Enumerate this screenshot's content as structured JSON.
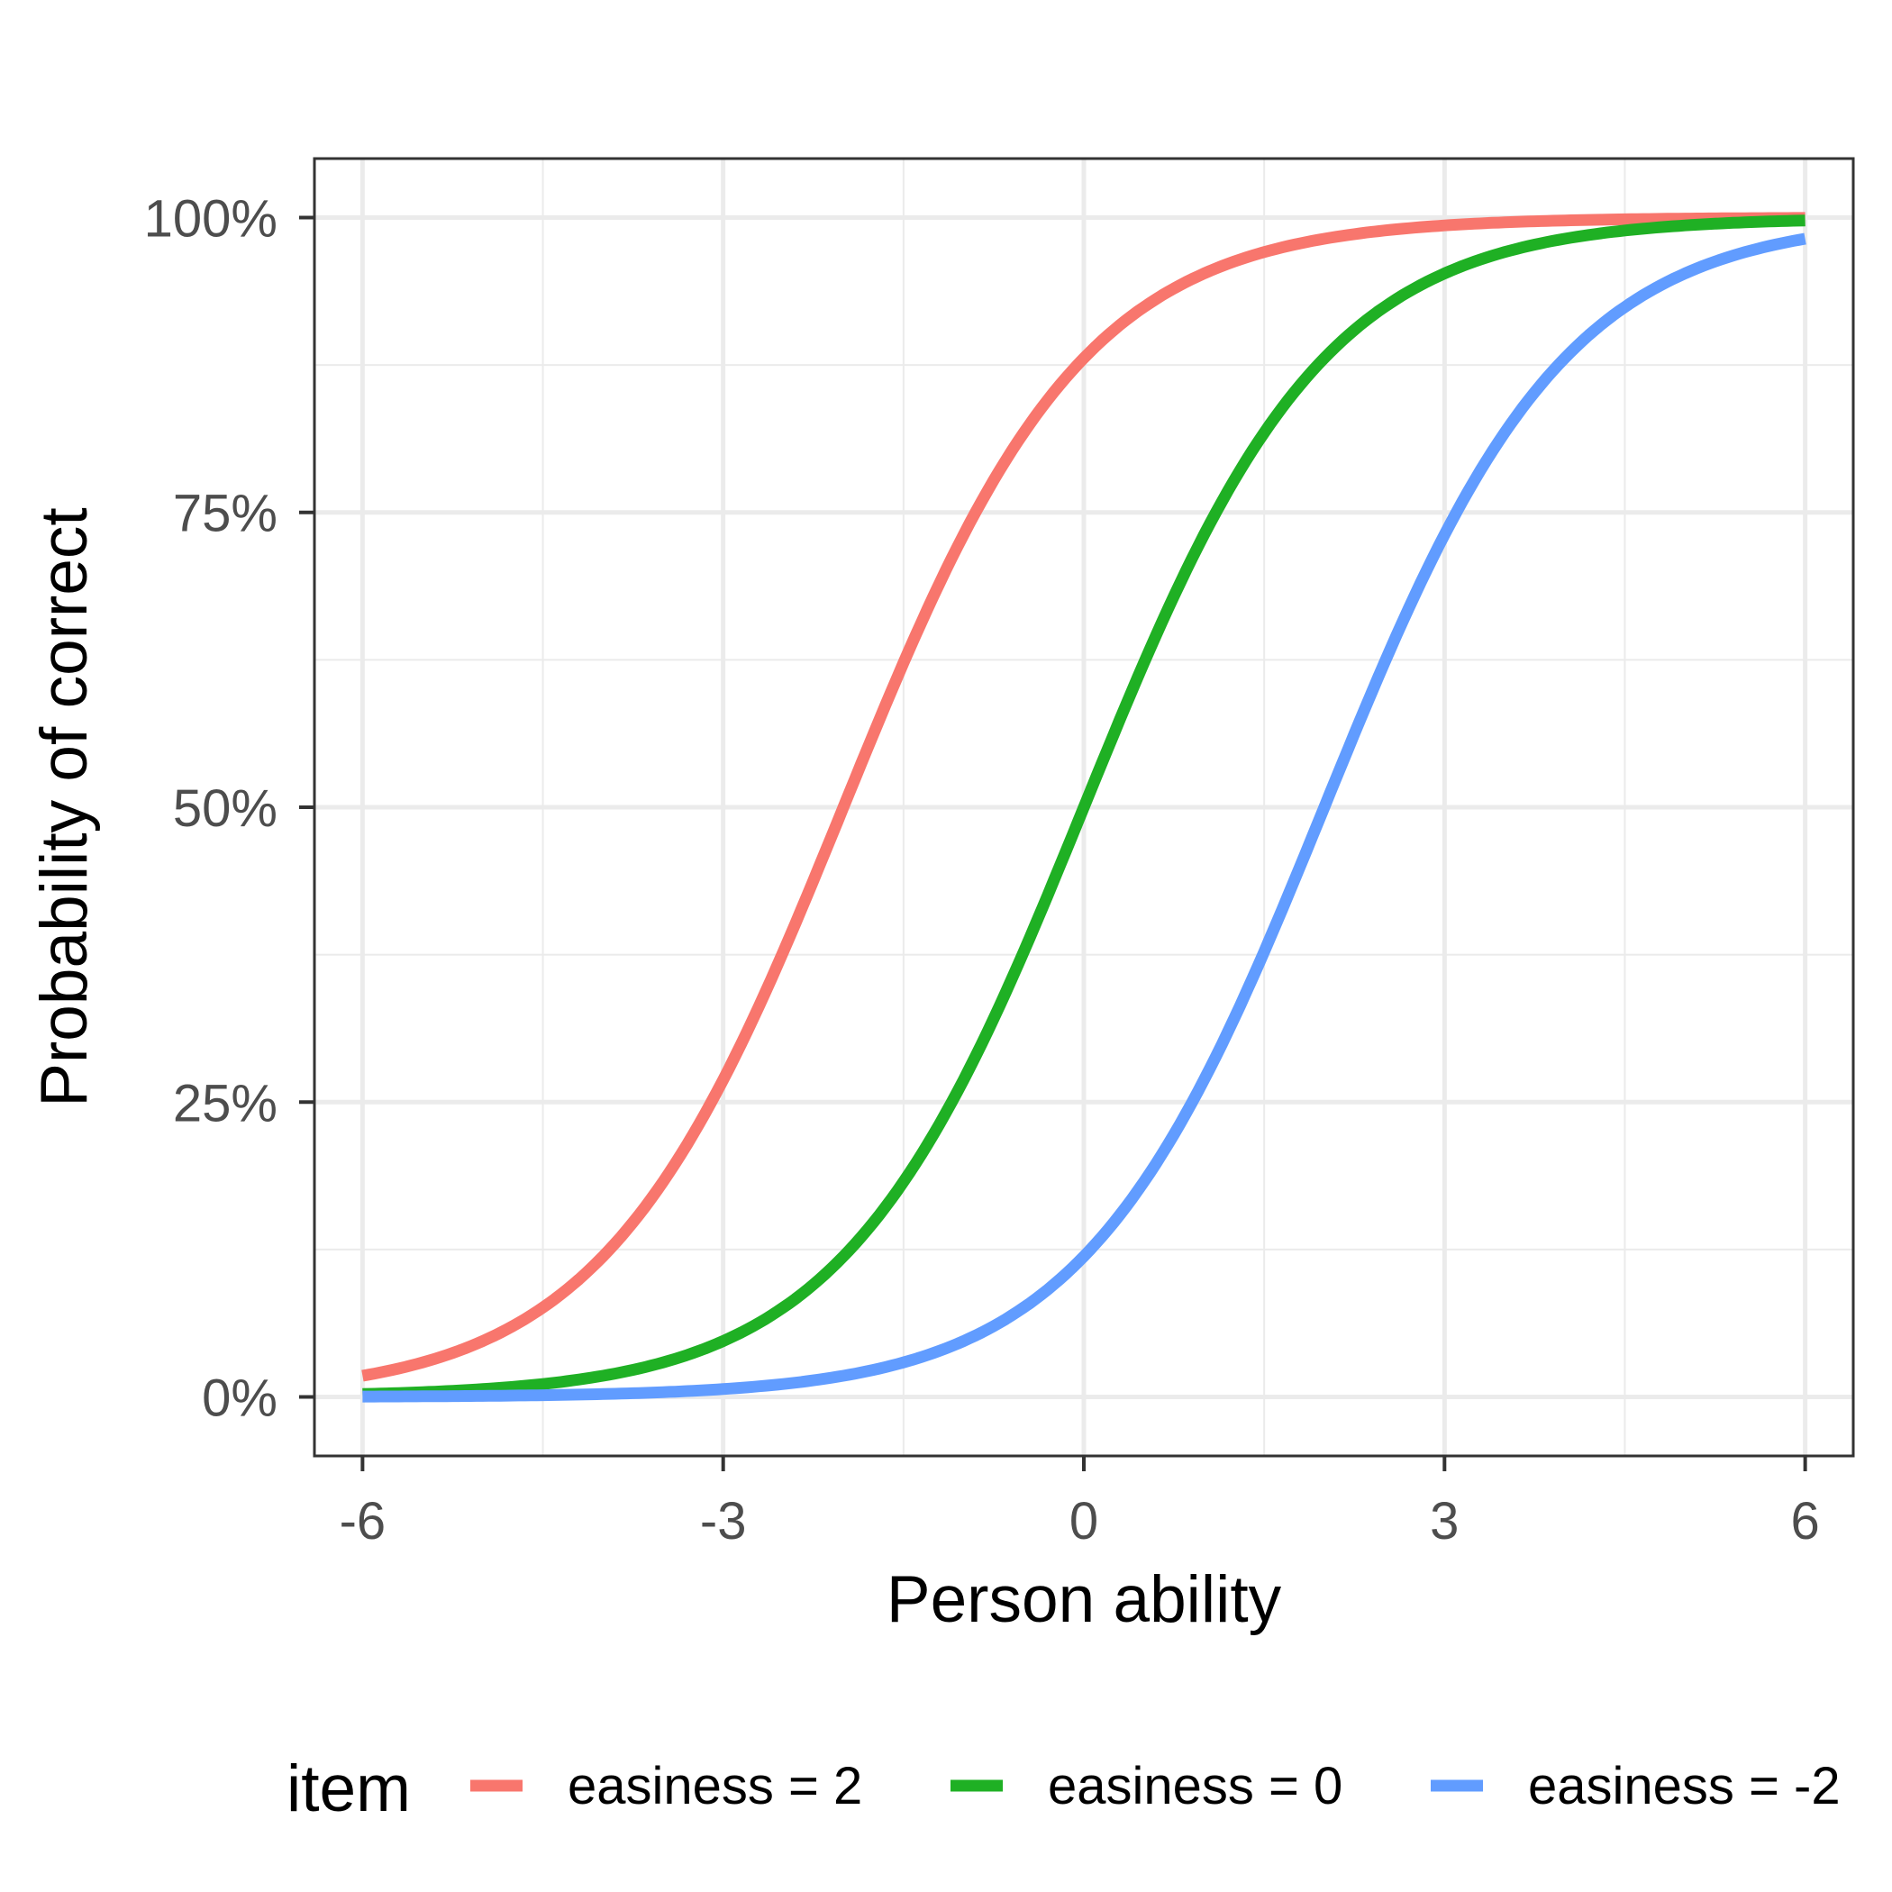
{
  "chart_data": {
    "type": "line",
    "title": "",
    "xlabel": "Person ability",
    "ylabel": "Probability of correct",
    "xlim": [
      -6.4,
      6.4
    ],
    "ylim": [
      -0.05,
      1.05
    ],
    "x_ticks": [
      -6,
      -3,
      0,
      3,
      6
    ],
    "x_tick_labels": [
      "-6",
      "-3",
      "0",
      "3",
      "6"
    ],
    "y_ticks": [
      0,
      0.25,
      0.5,
      0.75,
      1
    ],
    "y_tick_labels": [
      "0%",
      "25%",
      "50%",
      "75%",
      "100%"
    ],
    "x_minor_ticks": [
      -4.5,
      -1.5,
      1.5,
      4.5
    ],
    "y_minor_ticks": [
      0.125,
      0.375,
      0.625,
      0.875
    ],
    "grid": true,
    "legend": {
      "title": "item",
      "position": "bottom"
    },
    "series": [
      {
        "name": "easiness = 2",
        "color": "#F8766D",
        "easiness": 2,
        "x": [
          -6,
          -5.5,
          -5,
          -4.5,
          -4,
          -3.5,
          -3,
          -2.5,
          -2,
          -1.5,
          -1,
          -0.5,
          0,
          0.5,
          1,
          1.5,
          2,
          2.5,
          3,
          3.5,
          4,
          4.5,
          5,
          5.5,
          6
        ],
        "y": [
          0.018,
          0.029,
          0.047,
          0.076,
          0.119,
          0.182,
          0.269,
          0.378,
          0.5,
          0.622,
          0.731,
          0.818,
          0.881,
          0.924,
          0.953,
          0.971,
          0.982,
          0.989,
          0.993,
          0.996,
          0.998,
          0.998,
          0.999,
          0.999,
          1.0
        ]
      },
      {
        "name": "easiness = 0",
        "color": "#1FB024",
        "easiness": 0,
        "x": [
          -6,
          -5.5,
          -5,
          -4.5,
          -4,
          -3.5,
          -3,
          -2.5,
          -2,
          -1.5,
          -1,
          -0.5,
          0,
          0.5,
          1,
          1.5,
          2,
          2.5,
          3,
          3.5,
          4,
          4.5,
          5,
          5.5,
          6
        ],
        "y": [
          0.002,
          0.004,
          0.007,
          0.011,
          0.018,
          0.029,
          0.047,
          0.076,
          0.119,
          0.182,
          0.269,
          0.378,
          0.5,
          0.622,
          0.731,
          0.818,
          0.881,
          0.924,
          0.953,
          0.971,
          0.982,
          0.989,
          0.993,
          0.996,
          0.998
        ]
      },
      {
        "name": "easiness = -2",
        "color": "#619CFF",
        "easiness": -2,
        "x": [
          -6,
          -5.5,
          -5,
          -4.5,
          -4,
          -3.5,
          -3,
          -2.5,
          -2,
          -1.5,
          -1,
          -0.5,
          0,
          0.5,
          1,
          1.5,
          2,
          2.5,
          3,
          3.5,
          4,
          4.5,
          5,
          5.5,
          6
        ],
        "y": [
          0.0,
          0.001,
          0.001,
          0.002,
          0.002,
          0.004,
          0.007,
          0.011,
          0.018,
          0.029,
          0.047,
          0.076,
          0.119,
          0.182,
          0.269,
          0.378,
          0.5,
          0.622,
          0.731,
          0.818,
          0.881,
          0.924,
          0.953,
          0.971,
          0.982
        ]
      }
    ]
  }
}
